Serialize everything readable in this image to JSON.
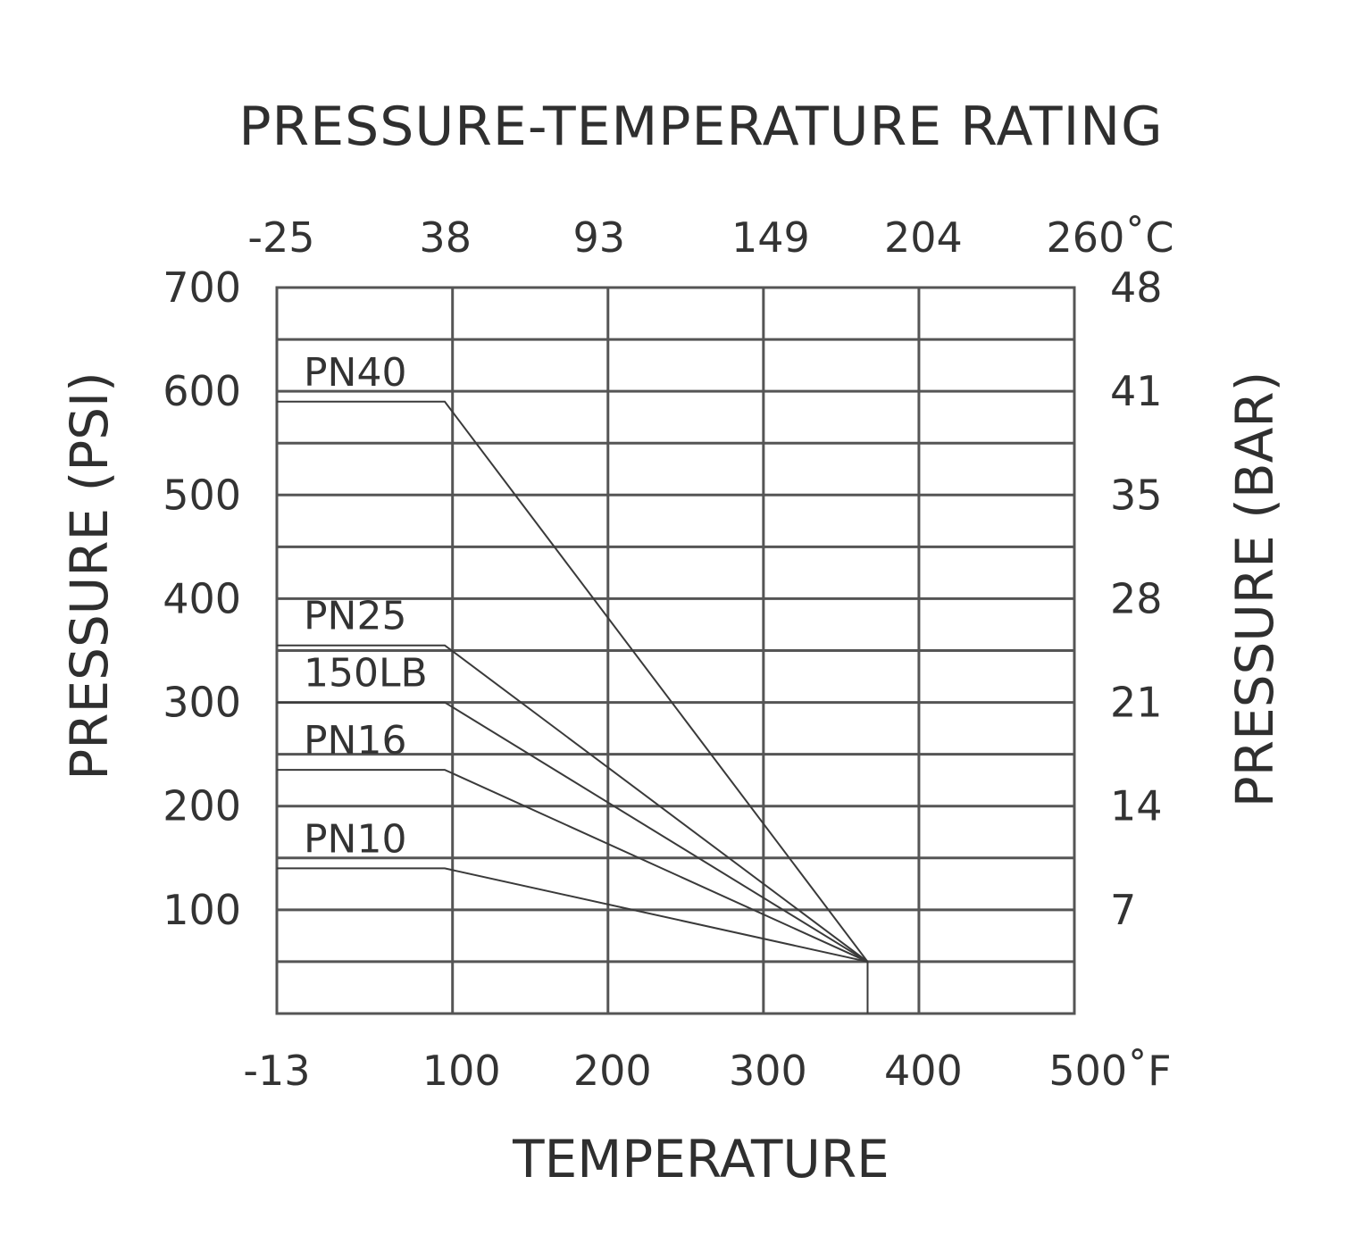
{
  "chart_data": {
    "type": "line",
    "title": "PRESSURE-TEMPERATURE RATING",
    "xlabel": "TEMPERATURE",
    "ylabel_left": "PRESSURE (PSI)",
    "ylabel_right": "PRESSURE (BAR)",
    "x_axis": {
      "unit": "°F",
      "range": [
        -13,
        500
      ],
      "tick_labels": [
        "-13",
        "100",
        "200",
        "300",
        "400",
        "500˚F"
      ]
    },
    "x2_axis": {
      "unit": "°C",
      "tick_labels": [
        "-25",
        "38",
        "93",
        "149",
        "204",
        "260˚C"
      ]
    },
    "y_axis": {
      "unit": "PSI",
      "range": [
        0,
        700
      ],
      "tick_labels": [
        "100",
        "200",
        "300",
        "400",
        "500",
        "600",
        "700"
      ]
    },
    "y2_axis": {
      "unit": "BAR",
      "tick_labels": [
        "7",
        "14",
        "21",
        "28",
        "35",
        "41",
        "48"
      ]
    },
    "grid": true,
    "series": [
      {
        "name": "PN40",
        "x": [
          -13,
          95,
          367,
          367
        ],
        "y": [
          590,
          590,
          50,
          0
        ]
      },
      {
        "name": "PN25",
        "x": [
          -13,
          95,
          367
        ],
        "y": [
          355,
          355,
          50
        ]
      },
      {
        "name": "150LB",
        "x": [
          -13,
          95,
          367
        ],
        "y": [
          300,
          300,
          50
        ]
      },
      {
        "name": "PN16",
        "x": [
          -13,
          95,
          367
        ],
        "y": [
          235,
          235,
          50
        ]
      },
      {
        "name": "PN10",
        "x": [
          -13,
          95,
          367
        ],
        "y": [
          140,
          140,
          50
        ]
      }
    ]
  }
}
